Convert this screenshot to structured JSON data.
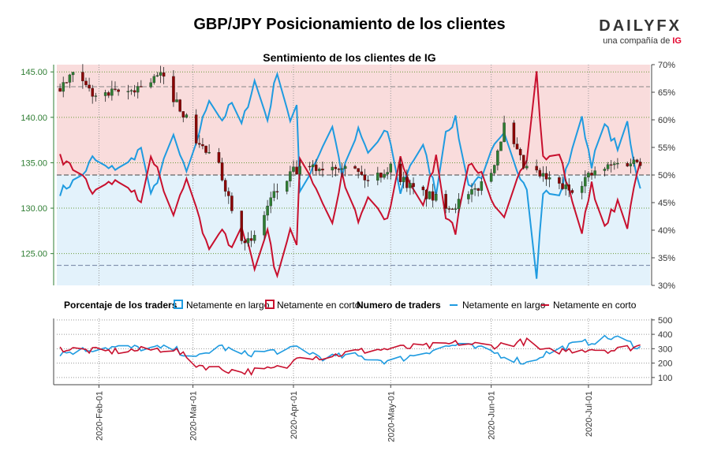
{
  "header": {
    "title": "GBP/JPY Posicionamiento de los clientes",
    "brand": {
      "mark": "DAILYFX",
      "subtitle": "una compañía de",
      "ig": "IG"
    },
    "subtitle": "Sentimiento de los clientes de IG"
  },
  "colors": {
    "price_axis": "#2e7d32",
    "long": "#1f9be0",
    "short": "#c8102e",
    "zone_top": "#f9dcdc",
    "zone_bottom": "#e3f2fb",
    "candle_up": "#2e7d32",
    "candle_down": "#8b0000"
  },
  "legend": {
    "pct_title": "Porcentaje de los traders",
    "pct_long": "Netamente en largo",
    "pct_short": "Netamente en corto",
    "num_title": "Numero de traders",
    "num_long": "Netamente en largo",
    "num_short": "Netamente en corto"
  },
  "chart_data": [
    {
      "type": "candlestick",
      "title": "Sentimiento de los clientes de IG",
      "x_ticks": [
        "2020-Feb-01",
        "2020-Mar-01",
        "2020-Apr-01",
        "2020-May-01",
        "2020-Jun-01",
        "2020-Jul-01"
      ],
      "y_left": {
        "ticks": [
          "125.00",
          "130.00",
          "135.00",
          "140.00",
          "145.00"
        ],
        "range": [
          121.5,
          145.8
        ]
      },
      "y_right": {
        "ticks": [
          "30%",
          "35%",
          "40%",
          "45%",
          "50%",
          "55%",
          "60%",
          "65%",
          "70%"
        ],
        "range": [
          30,
          70
        ]
      },
      "reference_lines": {
        "pct_50": 50,
        "pct_high": 66,
        "price_low": 123.7
      },
      "price_anchors": [
        {
          "date": "2020-01-20",
          "close": 143.2
        },
        {
          "date": "2020-01-24",
          "close": 144.5
        },
        {
          "date": "2020-01-31",
          "close": 142.3
        },
        {
          "date": "2020-02-10",
          "close": 142.8
        },
        {
          "date": "2020-02-20",
          "close": 144.6
        },
        {
          "date": "2020-02-27",
          "close": 140.5
        },
        {
          "date": "2020-03-02",
          "close": 137.5
        },
        {
          "date": "2020-03-09",
          "close": 134.5
        },
        {
          "date": "2020-03-16",
          "close": 127.0
        },
        {
          "date": "2020-03-19",
          "close": 126.0
        },
        {
          "date": "2020-03-25",
          "close": 131.0
        },
        {
          "date": "2020-04-01",
          "close": 134.0
        },
        {
          "date": "2020-04-10",
          "close": 134.5
        },
        {
          "date": "2020-04-17",
          "close": 135.0
        },
        {
          "date": "2020-04-24",
          "close": 133.0
        },
        {
          "date": "2020-05-01",
          "close": 134.5
        },
        {
          "date": "2020-05-08",
          "close": 132.0
        },
        {
          "date": "2020-05-15",
          "close": 131.0
        },
        {
          "date": "2020-05-20",
          "close": 130.2
        },
        {
          "date": "2020-05-26",
          "close": 131.5
        },
        {
          "date": "2020-06-01",
          "close": 134.0
        },
        {
          "date": "2020-06-05",
          "close": 139.0
        },
        {
          "date": "2020-06-11",
          "close": 134.5
        },
        {
          "date": "2020-06-19",
          "close": 133.0
        },
        {
          "date": "2020-06-25",
          "close": 132.0
        },
        {
          "date": "2020-07-01",
          "close": 133.5
        },
        {
          "date": "2020-07-09",
          "close": 134.8
        },
        {
          "date": "2020-07-16",
          "close": 135.2
        }
      ],
      "pct_long_anchors": [
        {
          "date": "2020-01-20",
          "value": 47
        },
        {
          "date": "2020-01-27",
          "value": 50
        },
        {
          "date": "2020-01-30",
          "value": 53
        },
        {
          "date": "2020-02-04",
          "value": 51
        },
        {
          "date": "2020-02-10",
          "value": 52
        },
        {
          "date": "2020-02-14",
          "value": 55
        },
        {
          "date": "2020-02-17",
          "value": 46
        },
        {
          "date": "2020-02-24",
          "value": 57
        },
        {
          "date": "2020-02-28",
          "value": 50
        },
        {
          "date": "2020-03-03",
          "value": 58
        },
        {
          "date": "2020-03-06",
          "value": 64
        },
        {
          "date": "2020-03-10",
          "value": 60
        },
        {
          "date": "2020-03-13",
          "value": 63
        },
        {
          "date": "2020-03-16",
          "value": 59
        },
        {
          "date": "2020-03-20",
          "value": 67
        },
        {
          "date": "2020-03-24",
          "value": 60
        },
        {
          "date": "2020-03-27",
          "value": 69
        },
        {
          "date": "2020-03-31",
          "value": 60
        },
        {
          "date": "2020-04-02",
          "value": 62
        },
        {
          "date": "2020-04-03",
          "value": 47
        },
        {
          "date": "2020-04-09",
          "value": 54
        },
        {
          "date": "2020-04-13",
          "value": 59
        },
        {
          "date": "2020-04-16",
          "value": 50
        },
        {
          "date": "2020-04-21",
          "value": 58
        },
        {
          "date": "2020-04-24",
          "value": 54
        },
        {
          "date": "2020-04-30",
          "value": 58
        },
        {
          "date": "2020-05-04",
          "value": 47
        },
        {
          "date": "2020-05-07",
          "value": 52
        },
        {
          "date": "2020-05-11",
          "value": 55
        },
        {
          "date": "2020-05-15",
          "value": 47
        },
        {
          "date": "2020-05-18",
          "value": 58
        },
        {
          "date": "2020-05-21",
          "value": 60
        },
        {
          "date": "2020-05-25",
          "value": 48
        },
        {
          "date": "2020-05-29",
          "value": 50
        },
        {
          "date": "2020-06-02",
          "value": 55
        },
        {
          "date": "2020-06-05",
          "value": 57
        },
        {
          "date": "2020-06-08",
          "value": 52
        },
        {
          "date": "2020-06-12",
          "value": 48
        },
        {
          "date": "2020-06-15",
          "value": 32
        },
        {
          "date": "2020-06-17",
          "value": 47
        },
        {
          "date": "2020-06-22",
          "value": 46
        },
        {
          "date": "2020-06-26",
          "value": 55
        },
        {
          "date": "2020-06-29",
          "value": 60
        },
        {
          "date": "2020-07-02",
          "value": 52
        },
        {
          "date": "2020-07-06",
          "value": 59
        },
        {
          "date": "2020-07-10",
          "value": 55
        },
        {
          "date": "2020-07-13",
          "value": 59
        },
        {
          "date": "2020-07-15",
          "value": 52
        },
        {
          "date": "2020-07-17",
          "value": 48
        }
      ]
    },
    {
      "type": "line",
      "title": "Numero de traders",
      "y_right": {
        "ticks": [
          "100",
          "200",
          "300",
          "400",
          "500"
        ],
        "range": [
          50,
          510
        ]
      },
      "series": [
        {
          "name": "Netamente en largo",
          "anchors": [
            {
              "date": "2020-01-20",
              "value": 270
            },
            {
              "date": "2020-02-03",
              "value": 310
            },
            {
              "date": "2020-02-24",
              "value": 300
            },
            {
              "date": "2020-03-02",
              "value": 230
            },
            {
              "date": "2020-03-09",
              "value": 320
            },
            {
              "date": "2020-03-16",
              "value": 260
            },
            {
              "date": "2020-03-23",
              "value": 280
            },
            {
              "date": "2020-03-31",
              "value": 290
            },
            {
              "date": "2020-04-02",
              "value": 310
            },
            {
              "date": "2020-04-10",
              "value": 240
            },
            {
              "date": "2020-04-20",
              "value": 250
            },
            {
              "date": "2020-05-01",
              "value": 210
            },
            {
              "date": "2020-05-15",
              "value": 300
            },
            {
              "date": "2020-05-22",
              "value": 330
            },
            {
              "date": "2020-06-01",
              "value": 280
            },
            {
              "date": "2020-06-12",
              "value": 200
            },
            {
              "date": "2020-06-17",
              "value": 260
            },
            {
              "date": "2020-06-25",
              "value": 320
            },
            {
              "date": "2020-07-02",
              "value": 350
            },
            {
              "date": "2020-07-09",
              "value": 380
            },
            {
              "date": "2020-07-17",
              "value": 310
            }
          ]
        },
        {
          "name": "Netamente en corto",
          "anchors": [
            {
              "date": "2020-01-20",
              "value": 300
            },
            {
              "date": "2020-02-03",
              "value": 280
            },
            {
              "date": "2020-02-24",
              "value": 300
            },
            {
              "date": "2020-03-02",
              "value": 190
            },
            {
              "date": "2020-03-09",
              "value": 160
            },
            {
              "date": "2020-03-16",
              "value": 140
            },
            {
              "date": "2020-03-23",
              "value": 150
            },
            {
              "date": "2020-03-31",
              "value": 180
            },
            {
              "date": "2020-04-02",
              "value": 260
            },
            {
              "date": "2020-04-10",
              "value": 240
            },
            {
              "date": "2020-04-20",
              "value": 280
            },
            {
              "date": "2020-05-01",
              "value": 300
            },
            {
              "date": "2020-05-15",
              "value": 320
            },
            {
              "date": "2020-05-22",
              "value": 340
            },
            {
              "date": "2020-06-01",
              "value": 320
            },
            {
              "date": "2020-06-12",
              "value": 350
            },
            {
              "date": "2020-06-17",
              "value": 280
            },
            {
              "date": "2020-06-25",
              "value": 290
            },
            {
              "date": "2020-07-02",
              "value": 300
            },
            {
              "date": "2020-07-09",
              "value": 290
            },
            {
              "date": "2020-07-17",
              "value": 320
            }
          ]
        }
      ]
    }
  ]
}
